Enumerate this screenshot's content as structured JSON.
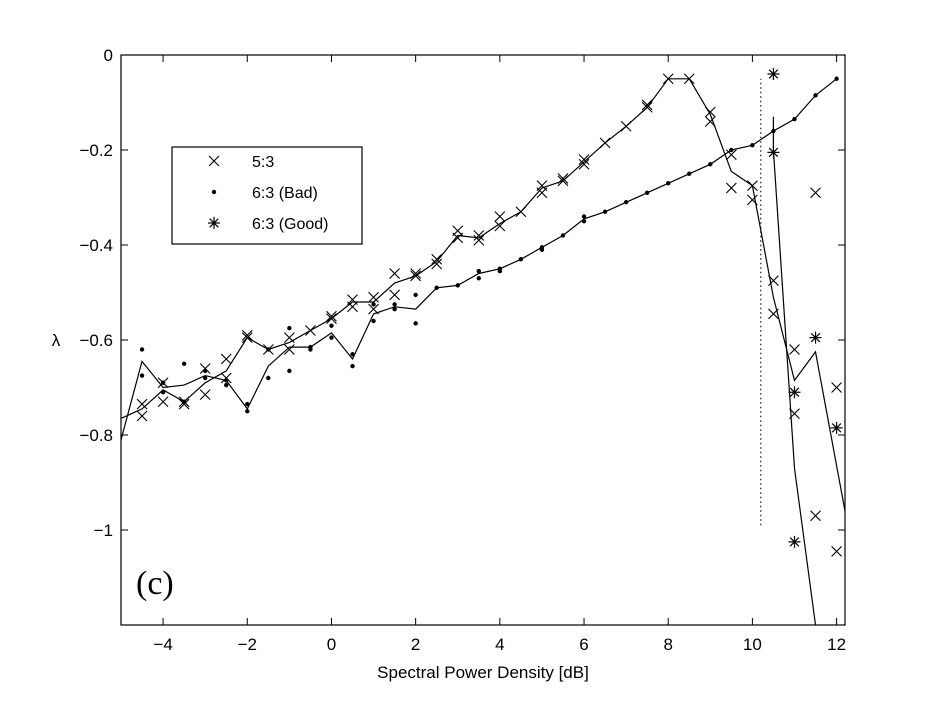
{
  "chart_data": {
    "type": "line",
    "panel_label": "(c)",
    "xlabel": "Spectral Power Density [dB]",
    "ylabel": "λ",
    "xlim": [
      -5,
      12.2
    ],
    "ylim": [
      -1.2,
      0
    ],
    "xticks": [
      -4,
      -2,
      0,
      2,
      4,
      6,
      8,
      10,
      12
    ],
    "yticks": [
      0,
      -0.2,
      -0.4,
      -0.6,
      -0.8,
      -1
    ],
    "grid": false,
    "legend": {
      "placement": "upper-left",
      "entries": [
        {
          "marker": "x",
          "label": "5:3"
        },
        {
          "marker": "dot",
          "label": "6:3 (Bad)"
        },
        {
          "marker": "star",
          "label": "6:3 (Good)"
        }
      ]
    },
    "vertical_dotted_line": {
      "x": 10.2,
      "y_range": [
        -0.99,
        -0.05
      ]
    },
    "series": [
      {
        "marker": "x",
        "points": [
          [
            -4.5,
            -0.735
          ],
          [
            -4.5,
            -0.76
          ],
          [
            -4,
            -0.69
          ],
          [
            -4,
            -0.73
          ],
          [
            -3.5,
            -0.73
          ],
          [
            -3.5,
            -0.735
          ],
          [
            -3,
            -0.66
          ],
          [
            -3,
            -0.715
          ],
          [
            -2.5,
            -0.64
          ],
          [
            -2.5,
            -0.68
          ],
          [
            -2,
            -0.59
          ],
          [
            -2,
            -0.595
          ],
          [
            -1.5,
            -0.62
          ],
          [
            -1,
            -0.595
          ],
          [
            -1,
            -0.62
          ],
          [
            -0.5,
            -0.58
          ],
          [
            0,
            -0.555
          ],
          [
            0,
            -0.55
          ],
          [
            0.5,
            -0.515
          ],
          [
            0.5,
            -0.53
          ],
          [
            1,
            -0.51
          ],
          [
            1,
            -0.535
          ],
          [
            1.5,
            -0.46
          ],
          [
            1.5,
            -0.505
          ],
          [
            2,
            -0.46
          ],
          [
            2,
            -0.465
          ],
          [
            2.5,
            -0.43
          ],
          [
            2.5,
            -0.44
          ],
          [
            3,
            -0.37
          ],
          [
            3,
            -0.385
          ],
          [
            3.5,
            -0.38
          ],
          [
            3.5,
            -0.39
          ],
          [
            4,
            -0.34
          ],
          [
            4,
            -0.36
          ],
          [
            4.5,
            -0.33
          ],
          [
            5,
            -0.275
          ],
          [
            5,
            -0.29
          ],
          [
            5.5,
            -0.26
          ],
          [
            5.5,
            -0.265
          ],
          [
            6,
            -0.22
          ],
          [
            6,
            -0.23
          ],
          [
            6.5,
            -0.185
          ],
          [
            7,
            -0.15
          ],
          [
            7.5,
            -0.105
          ],
          [
            7.5,
            -0.11
          ],
          [
            8,
            -0.05
          ],
          [
            8.5,
            -0.05
          ],
          [
            9,
            -0.12
          ],
          [
            9,
            -0.14
          ],
          [
            9.5,
            -0.21
          ],
          [
            9.5,
            -0.28
          ],
          [
            10,
            -0.275
          ],
          [
            10,
            -0.305
          ],
          [
            10.5,
            -0.475
          ],
          [
            10.5,
            -0.545
          ],
          [
            11,
            -0.62
          ],
          [
            11,
            -0.755
          ],
          [
            11.5,
            -0.29
          ],
          [
            11.5,
            -0.97
          ],
          [
            12,
            -0.7
          ],
          [
            12,
            -1.045
          ]
        ]
      },
      {
        "marker": "dot",
        "points": [
          [
            -4.5,
            -0.62
          ],
          [
            -4.5,
            -0.675
          ],
          [
            -4,
            -0.69
          ],
          [
            -4,
            -0.71
          ],
          [
            -3.5,
            -0.65
          ],
          [
            -3.5,
            -0.73
          ],
          [
            -3,
            -0.665
          ],
          [
            -3,
            -0.68
          ],
          [
            -2.5,
            -0.685
          ],
          [
            -2.5,
            -0.695
          ],
          [
            -2,
            -0.735
          ],
          [
            -2,
            -0.75
          ],
          [
            -1.5,
            -0.62
          ],
          [
            -1.5,
            -0.68
          ],
          [
            -1,
            -0.575
          ],
          [
            -1,
            -0.665
          ],
          [
            -0.5,
            -0.615
          ],
          [
            -0.5,
            -0.62
          ],
          [
            0,
            -0.57
          ],
          [
            0,
            -0.595
          ],
          [
            0.5,
            -0.63
          ],
          [
            0.5,
            -0.655
          ],
          [
            1,
            -0.525
          ],
          [
            1,
            -0.56
          ],
          [
            1.5,
            -0.525
          ],
          [
            1.5,
            -0.535
          ],
          [
            2,
            -0.505
          ],
          [
            2,
            -0.565
          ],
          [
            2.5,
            -0.49
          ],
          [
            3,
            -0.485
          ],
          [
            3.5,
            -0.455
          ],
          [
            3.5,
            -0.47
          ],
          [
            4,
            -0.45
          ],
          [
            4,
            -0.455
          ],
          [
            4.5,
            -0.43
          ],
          [
            5,
            -0.405
          ],
          [
            5,
            -0.41
          ],
          [
            5.5,
            -0.38
          ],
          [
            6,
            -0.34
          ],
          [
            6,
            -0.35
          ],
          [
            6.5,
            -0.33
          ],
          [
            7,
            -0.31
          ],
          [
            7.5,
            -0.29
          ],
          [
            8,
            -0.27
          ],
          [
            8.5,
            -0.25
          ],
          [
            9,
            -0.23
          ],
          [
            9.5,
            -0.2
          ],
          [
            10,
            -0.19
          ],
          [
            10.5,
            -0.16
          ],
          [
            11,
            -0.135
          ],
          [
            11.5,
            -0.085
          ],
          [
            12,
            -0.05
          ]
        ]
      },
      {
        "marker": "star",
        "points": [
          [
            10.5,
            -0.04
          ],
          [
            10.5,
            -0.205
          ],
          [
            11,
            -0.71
          ],
          [
            11,
            -1.025
          ],
          [
            11.5,
            -0.595
          ],
          [
            12,
            -0.785
          ]
        ]
      }
    ],
    "curves": [
      {
        "points": [
          [
            -5,
            -0.765
          ],
          [
            -4.5,
            -0.745
          ],
          [
            -4,
            -0.705
          ],
          [
            -3.5,
            -0.73
          ],
          [
            -3,
            -0.69
          ],
          [
            -2.5,
            -0.665
          ],
          [
            -2,
            -0.595
          ],
          [
            -1.5,
            -0.62
          ],
          [
            -1,
            -0.605
          ],
          [
            -0.5,
            -0.58
          ],
          [
            0,
            -0.555
          ],
          [
            0.5,
            -0.52
          ],
          [
            1,
            -0.52
          ],
          [
            1.5,
            -0.48
          ],
          [
            2,
            -0.465
          ],
          [
            2.5,
            -0.435
          ],
          [
            3,
            -0.38
          ],
          [
            3.5,
            -0.385
          ],
          [
            4,
            -0.355
          ],
          [
            4.5,
            -0.33
          ],
          [
            5,
            -0.28
          ],
          [
            5.5,
            -0.265
          ],
          [
            6,
            -0.225
          ],
          [
            6.5,
            -0.185
          ],
          [
            7,
            -0.15
          ],
          [
            7.5,
            -0.11
          ],
          [
            8,
            -0.05
          ],
          [
            8.5,
            -0.05
          ],
          [
            9,
            -0.125
          ],
          [
            9.5,
            -0.245
          ],
          [
            10,
            -0.275
          ],
          [
            10.5,
            -0.51
          ],
          [
            11,
            -0.685
          ],
          [
            11.5,
            -0.625
          ],
          [
            12.2,
            -0.96
          ]
        ]
      },
      {
        "points": [
          [
            -5,
            -0.81
          ],
          [
            -4.5,
            -0.645
          ],
          [
            -4,
            -0.7
          ],
          [
            -3.5,
            -0.695
          ],
          [
            -3,
            -0.675
          ],
          [
            -2.5,
            -0.685
          ],
          [
            -2,
            -0.745
          ],
          [
            -1.5,
            -0.655
          ],
          [
            -1,
            -0.615
          ],
          [
            -0.5,
            -0.615
          ],
          [
            0,
            -0.585
          ],
          [
            0.5,
            -0.64
          ],
          [
            1,
            -0.545
          ],
          [
            1.5,
            -0.53
          ],
          [
            2,
            -0.535
          ],
          [
            2.5,
            -0.49
          ],
          [
            3,
            -0.485
          ],
          [
            3.5,
            -0.46
          ],
          [
            4,
            -0.45
          ],
          [
            4.5,
            -0.43
          ],
          [
            5,
            -0.405
          ],
          [
            5.5,
            -0.38
          ],
          [
            6,
            -0.345
          ],
          [
            6.5,
            -0.33
          ],
          [
            7,
            -0.31
          ],
          [
            7.5,
            -0.29
          ],
          [
            8,
            -0.27
          ],
          [
            8.5,
            -0.25
          ],
          [
            9,
            -0.23
          ],
          [
            9.5,
            -0.2
          ],
          [
            10,
            -0.19
          ],
          [
            10.5,
            -0.16
          ],
          [
            11,
            -0.135
          ],
          [
            11.5,
            -0.085
          ],
          [
            12,
            -0.05
          ]
        ]
      },
      {
        "points": [
          [
            10.5,
            -0.13
          ],
          [
            10.5,
            -0.2
          ],
          [
            11,
            -0.87
          ],
          [
            11.5,
            -1.2
          ]
        ]
      }
    ]
  }
}
